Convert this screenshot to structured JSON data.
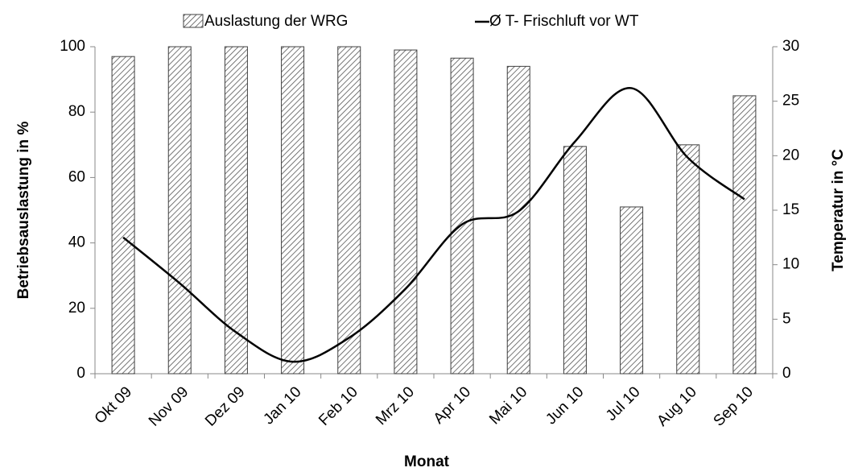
{
  "chart_data": {
    "type": "bar-line",
    "xlabel": "Monat",
    "ylabel": "Betriebsauslastung in %",
    "y2label": "Temperatur in °C",
    "categories": [
      "Okt 09",
      "Nov 09",
      "Dez 09",
      "Jan 10",
      "Feb 10",
      "Mrz 10",
      "Apr 10",
      "Mai 10",
      "Jun 10",
      "Jul 10",
      "Aug 10",
      "Sep 10"
    ],
    "series": [
      {
        "name": "Auslastung der WRG",
        "type": "bar",
        "color": "#404040",
        "values": [
          97,
          100,
          100,
          100,
          100,
          99,
          96.5,
          94,
          69.5,
          51,
          70,
          85
        ]
      },
      {
        "name": "Ø T- Frischluft vor WT",
        "type": "line",
        "axis": "y2",
        "smooth": true,
        "color": "#000000",
        "values": [
          12.5,
          8.3,
          3.8,
          1.1,
          3.3,
          7.8,
          13.7,
          14.9,
          21.3,
          26.2,
          19.8,
          16.0
        ]
      }
    ],
    "ylim": [
      0,
      100
    ],
    "yticks": [
      0,
      20,
      40,
      60,
      80,
      100
    ],
    "y2lim": [
      0,
      30
    ],
    "y2ticks": [
      0,
      5,
      10,
      15,
      20,
      25,
      30
    ],
    "legend": "top"
  }
}
